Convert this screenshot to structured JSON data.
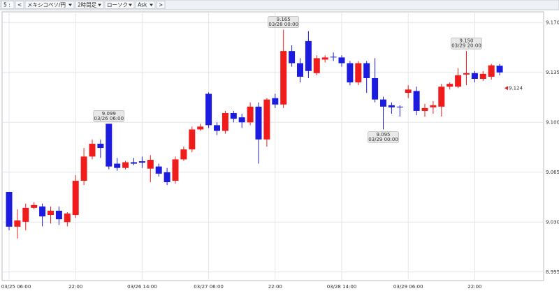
{
  "toolbar": [
    "5 :",
    "<",
    "メキシコペソ/円",
    "2時間足",
    "ローソク",
    "Ask",
    ">"
  ],
  "chart_data": {
    "type": "candlestick",
    "categories": [
      "03/25 06:00",
      null,
      null,
      null,
      null,
      null,
      null,
      null,
      "22:00",
      null,
      null,
      null,
      null,
      null,
      null,
      null,
      "03/26 14:00",
      null,
      null,
      null,
      null,
      null,
      null,
      null,
      "03/27 06:00",
      null,
      null,
      null,
      null,
      null,
      null,
      null,
      "22:00",
      null,
      null,
      null,
      null,
      null,
      null,
      null,
      "03/28 14:00",
      null,
      null,
      null,
      null,
      null,
      null,
      null,
      "03/29 06:00",
      null,
      null,
      null,
      null,
      null,
      null,
      null,
      "22:00",
      null,
      null,
      null
    ],
    "open": [
      9.0512,
      9.0268,
      9.0302,
      9.04,
      9.041,
      9.035,
      9.038,
      9.03,
      9.035,
      9.059,
      9.076,
      9.085,
      9.099,
      9.071,
      9.068,
      9.072,
      9.0727,
      9.0675,
      9.069,
      9.065,
      9.059,
      9.074,
      9.081,
      9.095,
      9.12,
      9.098,
      9.094,
      9.1065,
      9.1035,
      9.1,
      9.111,
      9.088,
      9.117,
      9.1125,
      9.15,
      9.1415,
      9.157,
      9.1345,
      9.144,
      9.146,
      9.1455,
      9.1415,
      9.128,
      9.1415,
      9.131,
      9.116,
      9.112,
      9.111,
      9.1207,
      9.122,
      9.108,
      9.1105,
      9.111,
      9.125,
      9.125,
      9.1335,
      9.1345,
      9.1305,
      9.132,
      9.1397
    ],
    "high": [
      9.0512,
      9.039,
      9.043,
      9.044,
      9.043,
      9.041,
      9.041,
      9.037,
      9.063,
      9.082,
      9.088,
      9.088,
      9.099,
      9.075,
      9.073,
      9.075,
      9.076,
      9.077,
      9.071,
      9.068,
      9.076,
      9.083,
      9.097,
      9.099,
      9.121,
      9.1,
      9.108,
      9.108,
      9.106,
      9.114,
      9.114,
      9.117,
      9.12,
      9.165,
      9.154,
      9.145,
      9.164,
      9.147,
      9.147,
      9.149,
      9.147,
      9.143,
      9.143,
      9.143,
      9.145,
      9.118,
      9.114,
      9.112,
      9.126,
      9.125,
      9.113,
      9.115,
      9.127,
      9.128,
      9.138,
      9.15,
      9.136,
      9.136,
      9.141,
      9.141
    ],
    "low": [
      9.0243,
      9.0185,
      9.0243,
      9.039,
      9.027,
      9.029,
      9.028,
      9.027,
      9.033,
      9.056,
      9.074,
      9.075,
      9.067,
      9.066,
      9.067,
      9.07,
      9.068,
      9.058,
      9.062,
      9.056,
      9.057,
      9.073,
      9.079,
      9.094,
      9.096,
      9.091,
      9.092,
      9.1,
      9.096,
      9.098,
      9.071,
      9.083,
      9.11,
      9.11,
      9.139,
      9.128,
      9.131,
      9.133,
      9.142,
      9.143,
      9.139,
      9.126,
      9.126,
      9.1206,
      9.114,
      9.095,
      9.106,
      9.104,
      9.117,
      9.105,
      9.104,
      9.106,
      9.104,
      9.123,
      9.124,
      9.126,
      9.128,
      9.129,
      9.13,
      9.133
    ],
    "close": [
      9.0268,
      9.0312,
      9.04,
      9.042,
      9.034,
      9.038,
      9.032,
      9.036,
      9.059,
      9.076,
      9.085,
      9.082,
      9.069,
      9.068,
      9.072,
      9.071,
      9.0717,
      9.0737,
      9.064,
      9.058,
      9.074,
      9.081,
      9.095,
      9.097,
      9.098,
      9.094,
      9.1065,
      9.1025,
      9.1,
      9.111,
      9.088,
      9.116,
      9.1125,
      9.15,
      9.1415,
      9.132,
      9.136,
      9.145,
      9.1455,
      9.1455,
      9.1415,
      9.128,
      9.1415,
      9.131,
      9.116,
      9.111,
      9.1105,
      9.1105,
      9.123,
      9.108,
      9.11,
      9.112,
      9.125,
      9.127,
      9.133,
      9.1345,
      9.1305,
      9.134,
      9.14,
      9.135
    ],
    "up_color": "#f01c1c",
    "down_color": "#1c1ce0",
    "ylim": [
      8.99,
      9.177
    ],
    "yticks": [
      {
        "value": 9.17,
        "label": "9.170"
      },
      {
        "value": 9.135,
        "label": "9.135"
      },
      {
        "value": 9.1,
        "label": "9.100"
      },
      {
        "value": 9.065,
        "label": "9.065"
      },
      {
        "value": 9.03,
        "label": "9.030"
      },
      {
        "value": 8.995,
        "label": "8.995"
      }
    ],
    "grid": true,
    "annotations": [
      {
        "price": {
          "value": 9.099,
          "label": "9.099"
        },
        "time": "03/26 06:00"
      },
      {
        "price": {
          "value": 9.165,
          "label": "9.165"
        },
        "time": "03/28 00:00"
      },
      {
        "price": {
          "value": 9.095,
          "label": "9.095"
        },
        "time": "03/29 00:00"
      },
      {
        "price": {
          "value": 9.15,
          "label": "9.150"
        },
        "time": "03/29 20:00"
      }
    ],
    "last_price": 9.124,
    "last_color": "#e8202a"
  }
}
